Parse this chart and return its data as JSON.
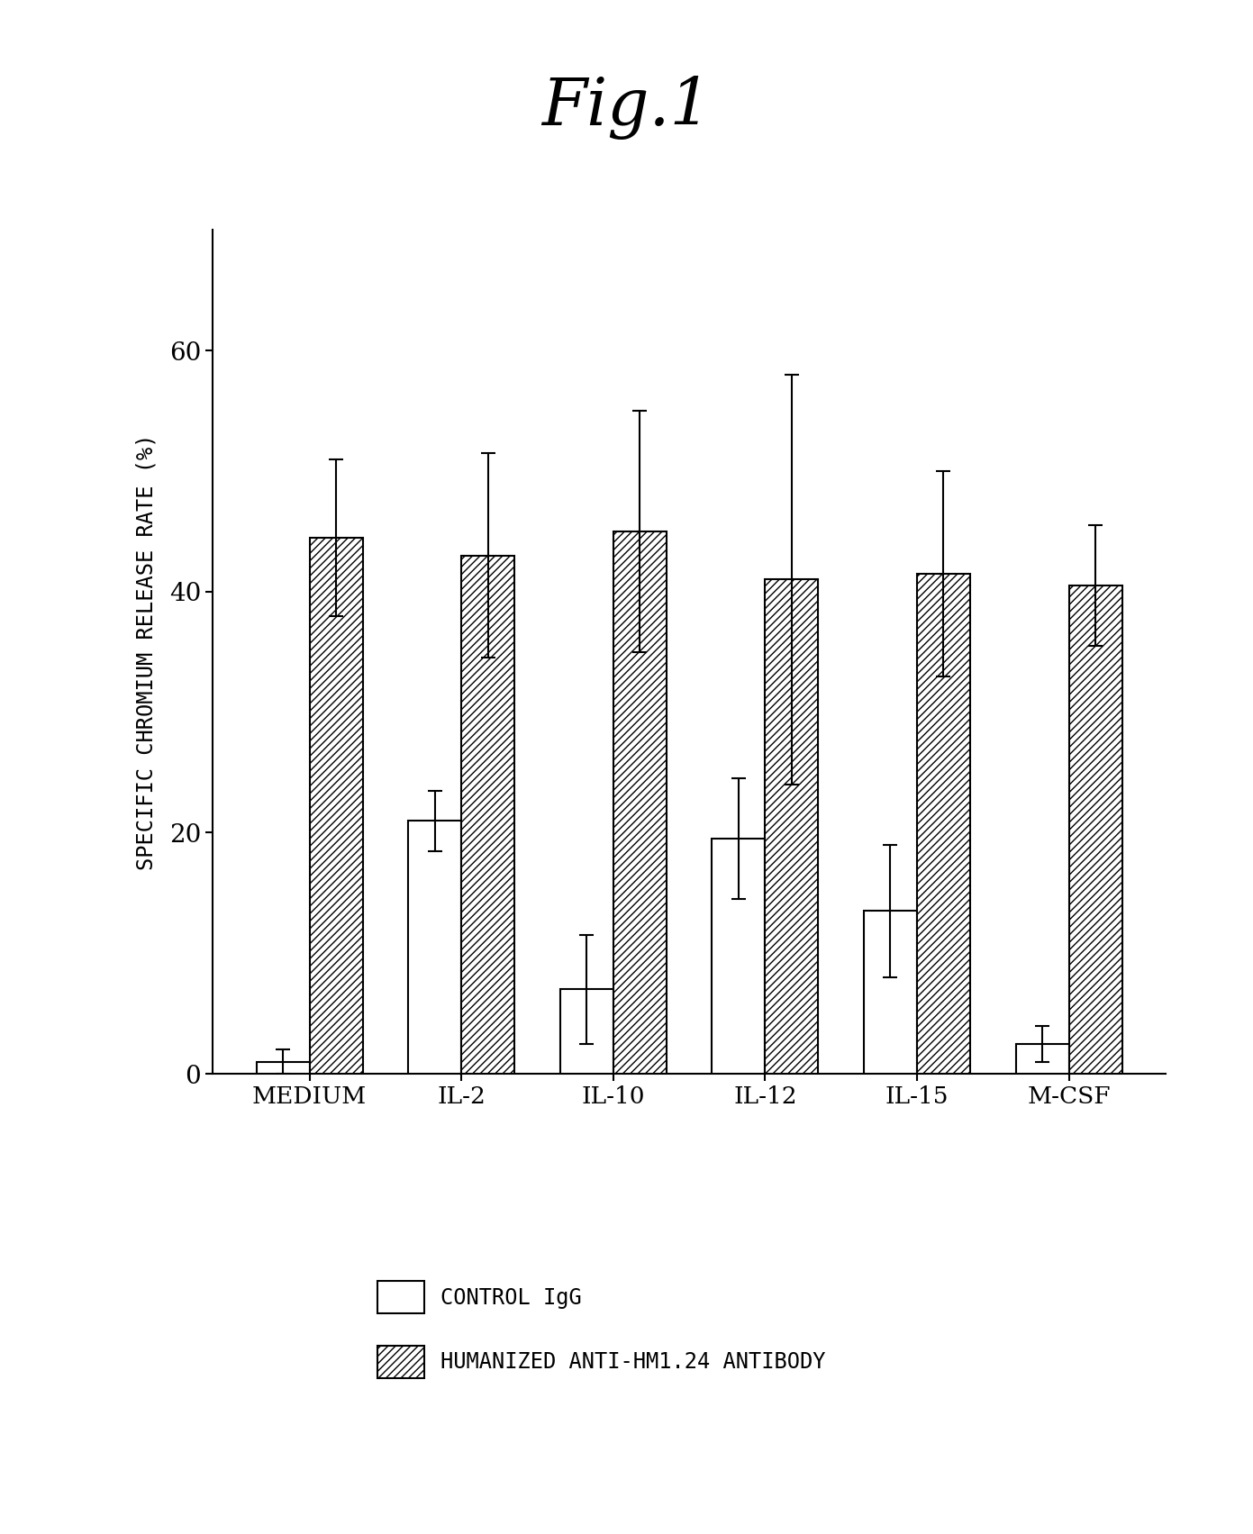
{
  "title": "Fig.1",
  "ylabel": "SPECIFIC CHROMIUM RELEASE RATE (%)",
  "categories": [
    "MEDIUM",
    "IL-2",
    "IL-10",
    "IL-12",
    "IL-15",
    "M-CSF"
  ],
  "control_values": [
    1.0,
    21.0,
    7.0,
    19.5,
    13.5,
    2.5
  ],
  "control_errors": [
    1.0,
    2.5,
    4.5,
    5.0,
    5.5,
    1.5
  ],
  "humanized_values": [
    44.5,
    43.0,
    45.0,
    41.0,
    41.5,
    40.5
  ],
  "humanized_errors": [
    6.5,
    8.5,
    10.0,
    17.0,
    8.5,
    5.0
  ],
  "ylim": [
    0,
    70
  ],
  "yticks": [
    0,
    20,
    40,
    60
  ],
  "bar_width": 0.35,
  "control_color": "#ffffff",
  "humanized_hatch": "////",
  "background_color": "#ffffff",
  "legend_labels": [
    "CONTROL IgG",
    "HUMANIZED ANTI-HM1.24 ANTIBODY"
  ],
  "title_fontsize": 52,
  "axis_label_fontsize": 17,
  "tick_fontsize": 20,
  "xtick_fontsize": 19,
  "legend_fontsize": 17
}
